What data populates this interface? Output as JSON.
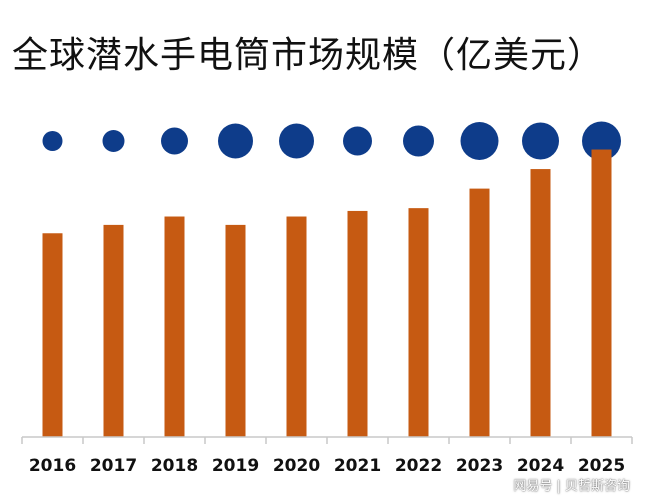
{
  "title": "全球潜水手电筒市场规模（亿美元）",
  "watermark": "网易号 | 贝哲斯咨询",
  "colors": {
    "bar": "#C65A12",
    "bubble": "#0E3C8A",
    "axis": "#C9C9C9"
  },
  "chart_data": {
    "type": "bar",
    "title": "全球潜水手电筒市场规模（亿美元）",
    "categories": [
      "2016",
      "2017",
      "2018",
      "2019",
      "2020",
      "2021",
      "2022",
      "2023",
      "2024",
      "2025"
    ],
    "series": [
      {
        "values": [
          36.5,
          38.0,
          39.5,
          38.0,
          39.5,
          40.5,
          41.0,
          44.5,
          48.0,
          51.5
        ]
      }
    ],
    "bubble_sizes": [
      1.0,
      1.1,
      1.35,
      1.75,
      1.75,
      1.45,
      1.55,
      1.9,
      1.85,
      1.95
    ],
    "ylim": [
      0,
      55
    ],
    "grid": false,
    "legend": "none"
  }
}
